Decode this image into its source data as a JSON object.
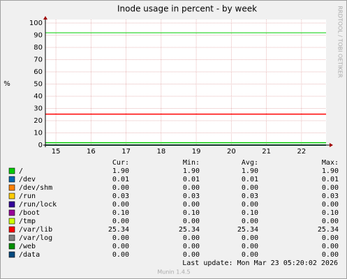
{
  "chart_data": {
    "type": "line",
    "title": "Inode usage in percent - by week",
    "y_label": "%",
    "side_text": "RRDTOOL / TOBI OETIKER",
    "xlim": [
      14.7,
      22.7
    ],
    "xticks": [
      15,
      16,
      17,
      18,
      19,
      20,
      21,
      22
    ],
    "ylim": [
      0,
      100
    ],
    "yticks": [
      0,
      10,
      20,
      30,
      40,
      50,
      60,
      70,
      80,
      90,
      100
    ],
    "grid": true,
    "hlines": [
      {
        "value": 92,
        "color": "#00cc00"
      }
    ],
    "columns": [
      "Cur:",
      "Min:",
      "Avg:",
      "Max:"
    ],
    "series": [
      {
        "name": "/",
        "color": "#00cc00",
        "values": [
          1.9,
          1.9,
          1.9,
          1.9
        ],
        "value_labels": [
          "1.90",
          "1.90",
          "1.90",
          "1.90"
        ]
      },
      {
        "name": "/dev",
        "color": "#0066b3",
        "values": [
          0.01,
          0.01,
          0.01,
          0.01
        ],
        "value_labels": [
          "0.01",
          "0.01",
          "0.01",
          "0.01"
        ]
      },
      {
        "name": "/dev/shm",
        "color": "#ff8000",
        "values": [
          0,
          0,
          0,
          0
        ],
        "value_labels": [
          "0.00",
          "0.00",
          "0.00",
          "0.00"
        ]
      },
      {
        "name": "/run",
        "color": "#ffcc00",
        "values": [
          0.03,
          0.03,
          0.03,
          0.03
        ],
        "value_labels": [
          "0.03",
          "0.03",
          "0.03",
          "0.03"
        ]
      },
      {
        "name": "/run/lock",
        "color": "#330099",
        "values": [
          0,
          0,
          0,
          0
        ],
        "value_labels": [
          "0.00",
          "0.00",
          "0.00",
          "0.00"
        ]
      },
      {
        "name": "/boot",
        "color": "#990099",
        "values": [
          0.1,
          0.1,
          0.1,
          0.1
        ],
        "value_labels": [
          "0.10",
          "0.10",
          "0.10",
          "0.10"
        ]
      },
      {
        "name": "/tmp",
        "color": "#ccff00",
        "values": [
          0,
          0,
          0,
          0
        ],
        "value_labels": [
          "0.00",
          "0.00",
          "0.00",
          "0.00"
        ]
      },
      {
        "name": "/var/lib",
        "color": "#ff0000",
        "values": [
          25.34,
          25.34,
          25.34,
          25.34
        ],
        "value_labels": [
          "25.34",
          "25.34",
          "25.34",
          "25.34"
        ]
      },
      {
        "name": "/var/log",
        "color": "#808080",
        "values": [
          0,
          0,
          0,
          0
        ],
        "value_labels": [
          "0.00",
          "0.00",
          "0.00",
          "0.00"
        ]
      },
      {
        "name": "/web",
        "color": "#008f00",
        "values": [
          0,
          0,
          0,
          0
        ],
        "value_labels": [
          "0.00",
          "0.00",
          "0.00",
          "0.00"
        ]
      },
      {
        "name": "/data",
        "color": "#00487d",
        "values": [
          0,
          0,
          0,
          0
        ],
        "value_labels": [
          "0.00",
          "0.00",
          "0.00",
          "0.00"
        ]
      }
    ],
    "last_update": "Last update:  Mon Mar 23 05:20:02 2026",
    "footer": "Munin 1.4.5"
  }
}
